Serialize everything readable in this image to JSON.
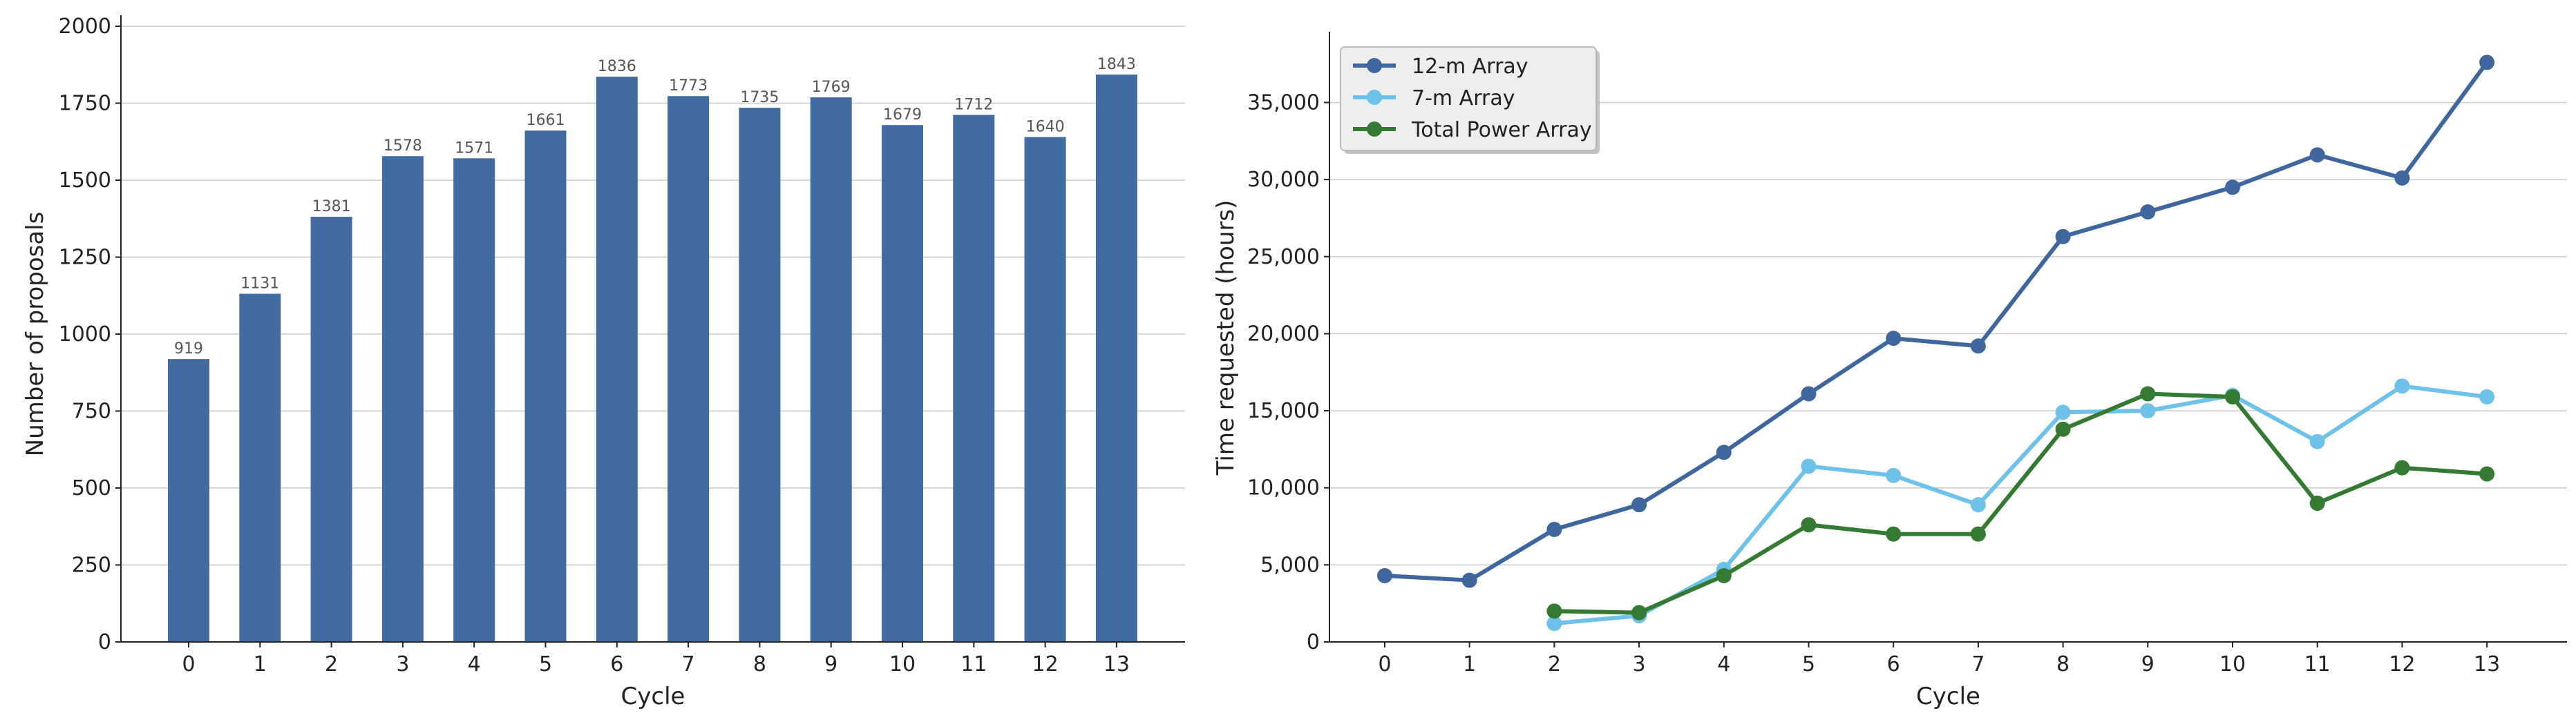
{
  "colors": {
    "bar": "#426BA2",
    "grid": "#cccccc",
    "axis": "#222222",
    "series_12m": "#3F679E",
    "series_7m": "#6EC1E8",
    "series_tp": "#357A33"
  },
  "chart_data": [
    {
      "type": "bar",
      "title": "",
      "xlabel": "Cycle",
      "ylabel": "Number of proposals",
      "categories": [
        "0",
        "1",
        "2",
        "3",
        "4",
        "5",
        "6",
        "7",
        "8",
        "9",
        "10",
        "11",
        "12",
        "13"
      ],
      "values": [
        919,
        1131,
        1381,
        1578,
        1571,
        1661,
        1836,
        1773,
        1735,
        1769,
        1679,
        1712,
        1640,
        1843
      ],
      "data_labels": [
        "919",
        "1131",
        "1381",
        "1578",
        "1571",
        "1661",
        "1836",
        "1773",
        "1735",
        "1769",
        "1679",
        "1712",
        "1640",
        "1843"
      ],
      "ylim": [
        0,
        2000
      ],
      "yticks": [
        0,
        250,
        500,
        750,
        1000,
        1250,
        1500,
        1750,
        2000
      ],
      "ytick_labels": [
        "0",
        "250",
        "500",
        "750",
        "1000",
        "1250",
        "1500",
        "1750",
        "2000"
      ],
      "grid": "horizontal"
    },
    {
      "type": "line",
      "title": "",
      "xlabel": "Cycle",
      "ylabel": "Time requested (hours)",
      "x": [
        0,
        1,
        2,
        3,
        4,
        5,
        6,
        7,
        8,
        9,
        10,
        11,
        12,
        13
      ],
      "xtick_labels": [
        "0",
        "1",
        "2",
        "3",
        "4",
        "5",
        "6",
        "7",
        "8",
        "9",
        "10",
        "11",
        "12",
        "13"
      ],
      "ylim": [
        0,
        39500
      ],
      "yticks": [
        0,
        5000,
        10000,
        15000,
        20000,
        25000,
        30000,
        35000
      ],
      "ytick_labels": [
        "0",
        "5,000",
        "10,000",
        "15,000",
        "20,000",
        "25,000",
        "30,000",
        "35,000"
      ],
      "grid": "horizontal",
      "legend_position": "top-left",
      "series": [
        {
          "name": "12-m Array",
          "x": [
            0,
            1,
            2,
            3,
            4,
            5,
            6,
            7,
            8,
            9,
            10,
            11,
            12,
            13
          ],
          "values": [
            4300,
            4000,
            7300,
            8900,
            12300,
            16100,
            19700,
            19200,
            26300,
            27900,
            29500,
            31600,
            30100,
            37600
          ]
        },
        {
          "name": "7-m Array",
          "x": [
            2,
            3,
            4,
            5,
            6,
            7,
            8,
            9,
            10,
            11,
            12,
            13
          ],
          "values": [
            1200,
            1700,
            4700,
            11400,
            10800,
            8900,
            14900,
            15000,
            16000,
            13000,
            16600,
            15900
          ]
        },
        {
          "name": "Total Power Array",
          "x": [
            2,
            3,
            4,
            5,
            6,
            7,
            8,
            9,
            10,
            11,
            12,
            13
          ],
          "values": [
            2000,
            1900,
            4300,
            7600,
            7000,
            7000,
            13800,
            16100,
            15900,
            9000,
            11300,
            10900
          ]
        }
      ]
    }
  ]
}
